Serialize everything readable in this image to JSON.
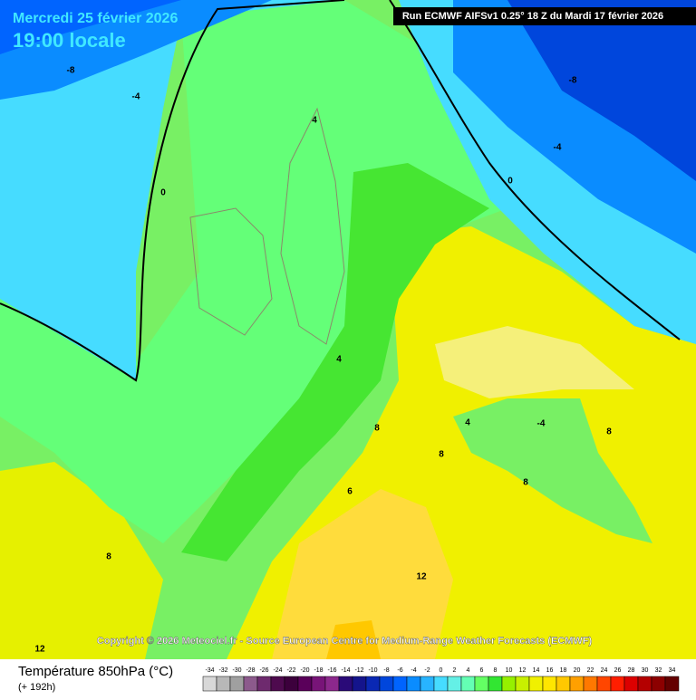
{
  "header": {
    "date": "Mercredi 25 février 2026",
    "time": "19:00 locale",
    "run": "Run ECMWF AIFSv1 0.25° 18 Z du Mardi 17 février 2026"
  },
  "map": {
    "contour_labels": [
      "-8",
      "-4",
      "0",
      "4",
      "4",
      "8",
      "8",
      "6",
      "8",
      "4",
      "-4",
      "8",
      "8",
      "12",
      "12",
      "-8",
      "-4",
      "0"
    ]
  },
  "copyright": "Copyright © 2026 Meteociel.fr - Source European Centre for Medium-Range Weather Forecasts (ECMWF)",
  "legend": {
    "title": "Température 850hPa (°C)",
    "lead": "(+ 192h)",
    "ticks": [
      -34,
      -32,
      -30,
      -28,
      -26,
      -24,
      -22,
      -20,
      -18,
      -16,
      -14,
      -12,
      -10,
      -8,
      -6,
      -4,
      -2,
      0,
      2,
      4,
      6,
      8,
      10,
      12,
      14,
      16,
      18,
      20,
      22,
      24,
      26,
      28,
      30,
      32,
      34
    ],
    "colors": [
      "#d8d8d8",
      "#b8b8b8",
      "#a0a0a0",
      "#8c5a8c",
      "#6e2a6e",
      "#4e0a4e",
      "#3c003c",
      "#5a005a",
      "#781478",
      "#8c288c",
      "#2a0a78",
      "#14148c",
      "#0a28b4",
      "#0046dc",
      "#0064ff",
      "#0a8cff",
      "#28b4ff",
      "#46dcff",
      "#64f0e6",
      "#64ffb4",
      "#64ff64",
      "#32e632",
      "#96f000",
      "#c8f000",
      "#f0f000",
      "#ffe600",
      "#ffc800",
      "#ffa000",
      "#ff7800",
      "#ff4600",
      "#ff1e00",
      "#dc0000",
      "#b40000",
      "#8c0000",
      "#640000"
    ]
  }
}
